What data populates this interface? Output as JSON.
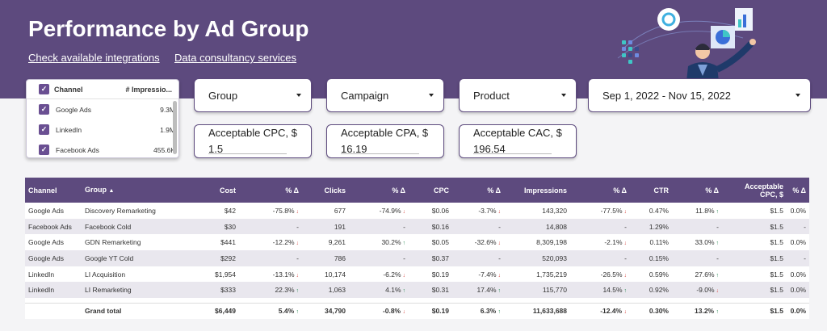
{
  "header": {
    "title": "Performance by Ad Group",
    "links": [
      "Check available integrations",
      "Data consultancy services"
    ]
  },
  "channel_filter": {
    "header_label": "Channel",
    "header_metric": "# Impressio...",
    "items": [
      {
        "label": "Google Ads",
        "value": "9.3M"
      },
      {
        "label": "LinkedIn",
        "value": "1.9M"
      },
      {
        "label": "Facebook Ads",
        "value": "455.6K"
      }
    ]
  },
  "filters": {
    "group": "Group",
    "campaign": "Campaign",
    "product": "Product",
    "date_range": "Sep 1, 2022 - Nov 15, 2022"
  },
  "inputs": {
    "cpc": {
      "label": "Acceptable CPC, $",
      "value": "1.5"
    },
    "cpa": {
      "label": "Acceptable CPA, $",
      "value": "16.19"
    },
    "cac": {
      "label": "Acceptable CAC, $",
      "value": "196.54"
    }
  },
  "table": {
    "columns": [
      "Channel",
      "Group",
      "Cost",
      "% Δ",
      "Clicks",
      "% Δ",
      "CPC",
      "% Δ",
      "Impressions",
      "% Δ",
      "CTR",
      "% Δ",
      "Acceptable CPC, $",
      "% Δ"
    ],
    "rows": [
      [
        "Google Ads",
        "Discovery Remarketing",
        "$42",
        "-75.8%",
        "677",
        "-74.9%",
        "$0.06",
        "-3.7%",
        "143,320",
        "-77.5%",
        "0.47%",
        "11.8%",
        "$1.5",
        "0.0%"
      ],
      [
        "Facebook Ads",
        "Facebook Cold",
        "$30",
        "-",
        "191",
        "-",
        "$0.16",
        "-",
        "14,808",
        "-",
        "1.29%",
        "-",
        "$1.5",
        "-"
      ],
      [
        "Google Ads",
        "GDN Remarketing",
        "$441",
        "-12.2%",
        "9,261",
        "30.2%",
        "$0.05",
        "-32.6%",
        "8,309,198",
        "-2.1%",
        "0.11%",
        "33.0%",
        "$1.5",
        "0.0%"
      ],
      [
        "Google Ads",
        "Google YT Cold",
        "$292",
        "-",
        "786",
        "-",
        "$0.37",
        "-",
        "520,093",
        "-",
        "0.15%",
        "-",
        "$1.5",
        "-"
      ],
      [
        "LinkedIn",
        "LI Acquisition",
        "$1,954",
        "-13.1%",
        "10,174",
        "-6.2%",
        "$0.19",
        "-7.4%",
        "1,735,219",
        "-26.5%",
        "0.59%",
        "27.6%",
        "$1.5",
        "0.0%"
      ],
      [
        "LinkedIn",
        "LI Remarketing",
        "$333",
        "22.3%",
        "1,063",
        "4.1%",
        "$0.31",
        "17.4%",
        "115,770",
        "14.5%",
        "0.92%",
        "-9.0%",
        "$1.5",
        "0.0%"
      ]
    ],
    "total": [
      "Grand total",
      "$6,449",
      "5.4%",
      "34,790",
      "-0.8%",
      "$0.19",
      "6.3%",
      "11,633,688",
      "-12.4%",
      "0.30%",
      "13.2%",
      "$1.5",
      "0.0%"
    ]
  },
  "colors": {
    "brand": "#5d4a7e",
    "positive": "#2e8b57",
    "negative": "#d9534f"
  }
}
